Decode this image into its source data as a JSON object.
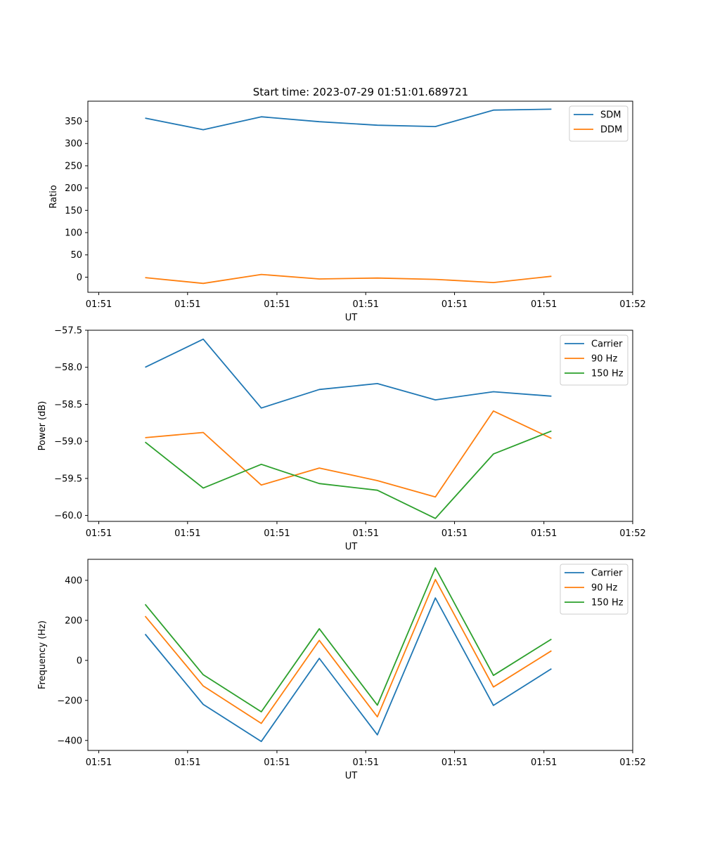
{
  "figure": {
    "suptitle": "Start time: 2023-07-29 01:51:01.689721"
  },
  "colors": {
    "blue": "#1f77b4",
    "orange": "#ff7f0e",
    "green": "#2ca02c"
  },
  "chart_data": [
    {
      "type": "line",
      "title": "Start time: 2023-07-29 01:51:01.689721",
      "xlabel": "UT",
      "ylabel": "Ratio",
      "x": [
        1,
        2,
        3,
        4,
        5,
        6,
        7,
        8
      ],
      "xlim": [
        0.2,
        9.4
      ],
      "x_ticks": [
        0.2,
        1.73,
        3.27,
        4.8,
        6.33,
        7.87,
        9.4
      ],
      "x_tick_labels": [
        "01:51",
        "01:51",
        "01:51",
        "01:51",
        "01:51",
        "01:51",
        "01:52"
      ],
      "ylim": [
        -34,
        395
      ],
      "y_ticks": [
        0,
        50,
        100,
        150,
        200,
        250,
        300,
        350
      ],
      "y_tick_labels": [
        "0",
        "50",
        "100",
        "150",
        "200",
        "250",
        "300",
        "350"
      ],
      "legend_position": "top-right",
      "series": [
        {
          "name": "SDM",
          "color": "blue",
          "values": [
            357,
            331,
            360,
            349,
            341,
            338,
            375,
            377
          ]
        },
        {
          "name": "DDM",
          "color": "orange",
          "values": [
            -1,
            -14,
            6,
            -4,
            -2,
            -5,
            -12,
            2
          ]
        }
      ]
    },
    {
      "type": "line",
      "xlabel": "UT",
      "ylabel": "Power (dB)",
      "x": [
        1,
        2,
        3,
        4,
        5,
        6,
        7,
        8
      ],
      "xlim": [
        0.2,
        9.4
      ],
      "x_ticks": [
        0.2,
        1.73,
        3.27,
        4.8,
        6.33,
        7.87,
        9.4
      ],
      "x_tick_labels": [
        "01:51",
        "01:51",
        "01:51",
        "01:51",
        "01:51",
        "01:51",
        "01:52"
      ],
      "ylim": [
        -60.08,
        -57.5
      ],
      "y_ticks": [
        -60.0,
        -59.5,
        -59.0,
        -58.5,
        -58.0,
        -57.5
      ],
      "y_tick_labels": [
        "−60.0",
        "−59.5",
        "−59.0",
        "−58.5",
        "−58.0",
        "−57.5"
      ],
      "legend_position": "top-right",
      "series": [
        {
          "name": "Carrier",
          "color": "blue",
          "values": [
            -58.0,
            -57.62,
            -58.55,
            -58.3,
            -58.22,
            -58.44,
            -58.33,
            -58.39
          ]
        },
        {
          "name": "90 Hz",
          "color": "orange",
          "values": [
            -58.95,
            -58.88,
            -59.59,
            -59.36,
            -59.53,
            -59.75,
            -58.59,
            -58.96
          ]
        },
        {
          "name": "150 Hz",
          "color": "green",
          "values": [
            -59.01,
            -59.63,
            -59.31,
            -59.57,
            -59.66,
            -60.04,
            -59.17,
            -58.86
          ]
        }
      ]
    },
    {
      "type": "line",
      "xlabel": "UT",
      "ylabel": "Frequency (Hz)",
      "x": [
        1,
        2,
        3,
        4,
        5,
        6,
        7,
        8
      ],
      "xlim": [
        0.2,
        9.4
      ],
      "x_ticks": [
        0.2,
        1.73,
        3.27,
        4.8,
        6.33,
        7.87,
        9.4
      ],
      "x_tick_labels": [
        "01:51",
        "01:51",
        "01:51",
        "01:51",
        "01:51",
        "01:51",
        "01:52"
      ],
      "ylim": [
        -450,
        505
      ],
      "y_ticks": [
        -400,
        -200,
        0,
        200,
        400
      ],
      "y_tick_labels": [
        "−400",
        "−200",
        "0",
        "200",
        "400"
      ],
      "legend_position": "top-right",
      "series": [
        {
          "name": "Carrier",
          "color": "blue",
          "values": [
            131,
            -220,
            -405,
            10,
            -372,
            312,
            -225,
            -42
          ]
        },
        {
          "name": "90 Hz",
          "color": "orange",
          "values": [
            221,
            -128,
            -315,
            100,
            -282,
            404,
            -133,
            48
          ]
        },
        {
          "name": "150 Hz",
          "color": "green",
          "values": [
            280,
            -72,
            -257,
            158,
            -224,
            462,
            -75,
            106
          ]
        }
      ]
    }
  ]
}
